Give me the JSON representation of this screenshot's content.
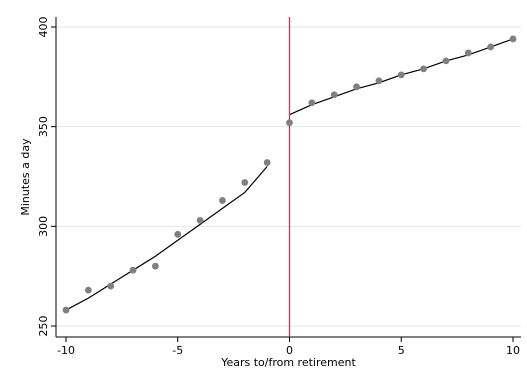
{
  "chart_data": {
    "type": "scatter",
    "title": "",
    "xlabel": "Years to/from retirement",
    "ylabel": "Minutes a day",
    "xlim": [
      -10,
      10
    ],
    "ylim": [
      250,
      400
    ],
    "xticks": [
      -10,
      -5,
      0,
      5,
      10
    ],
    "yticks": [
      250,
      300,
      350,
      400
    ],
    "x_tick_labels": [
      "-10",
      "-5",
      "0",
      "5",
      "10"
    ],
    "y_tick_labels": [
      "250",
      "300",
      "350",
      "400"
    ],
    "grid": "horizontal",
    "legend": "none",
    "colors": {
      "points": "#808080",
      "fit_line": "#000000",
      "cutoff_line": "#b03a6a",
      "grid": "#e5e5e5"
    },
    "reference_line_x": 0,
    "series": [
      {
        "values_x": [
          -10,
          -9,
          -8,
          -7,
          -6,
          -5,
          -4,
          -3,
          -2,
          -1,
          0,
          1,
          2,
          3,
          4,
          5,
          6,
          7,
          8,
          9,
          10
        ],
        "values_y": [
          258,
          268,
          270,
          278,
          280,
          296,
          303,
          313,
          322,
          332,
          352,
          362,
          366,
          370,
          373,
          376,
          379,
          383,
          387,
          390,
          394
        ]
      }
    ],
    "fit_lines": [
      {
        "x": [
          -10,
          -9,
          -8,
          -7,
          -6,
          -5,
          -4,
          -3,
          -2,
          -1
        ],
        "y": [
          258,
          264,
          271,
          278,
          285,
          293,
          301,
          309,
          317,
          330
        ]
      },
      {
        "x": [
          0,
          1,
          2,
          3,
          4,
          5,
          6,
          7,
          8,
          9,
          10
        ],
        "y": [
          356,
          361,
          365,
          369,
          372,
          376,
          379,
          383,
          386,
          390,
          394
        ]
      }
    ]
  }
}
